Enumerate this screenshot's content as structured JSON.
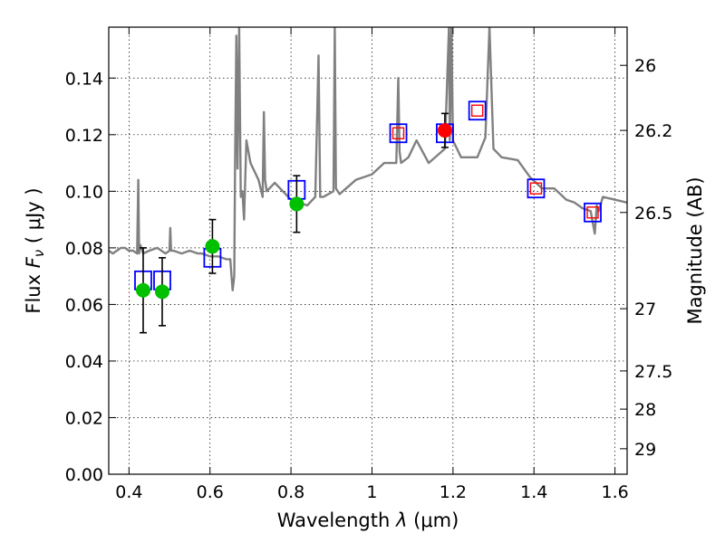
{
  "chart_data": {
    "type": "scatter",
    "title": "",
    "xlabel_prefix": "Wavelength  ",
    "xlabel_symbol": "λ",
    "xlabel_unit": " (μm)",
    "ylabel_prefix": "Flux  ",
    "ylabel_symbol": "F",
    "ylabel_symbol_sub": "ν",
    "ylabel_unit": "  ( μJy )",
    "y2label": "Magnitude (AB)",
    "xlim": [
      0.35,
      1.63
    ],
    "ylim": [
      0.0,
      0.158
    ],
    "grid": true,
    "x_ticks": [
      {
        "value": 0.4,
        "label": "0.4"
      },
      {
        "value": 0.6,
        "label": "0.6"
      },
      {
        "value": 0.8,
        "label": "0.8"
      },
      {
        "value": 1.0,
        "label": "1"
      },
      {
        "value": 1.2,
        "label": "1.2"
      },
      {
        "value": 1.4,
        "label": "1.4"
      },
      {
        "value": 1.6,
        "label": "1.6"
      }
    ],
    "y_ticks": [
      {
        "value": 0.0,
        "label": "0.00"
      },
      {
        "value": 0.02,
        "label": "0.02"
      },
      {
        "value": 0.04,
        "label": "0.04"
      },
      {
        "value": 0.06,
        "label": "0.06"
      },
      {
        "value": 0.08,
        "label": "0.08"
      },
      {
        "value": 0.1,
        "label": "0.10"
      },
      {
        "value": 0.12,
        "label": "0.12"
      },
      {
        "value": 0.14,
        "label": "0.14"
      }
    ],
    "y2_ticks": [
      {
        "flux": 0.1445,
        "label": "26"
      },
      {
        "flux": 0.1215,
        "label": "26.2"
      },
      {
        "flux": 0.0925,
        "label": "26.5"
      },
      {
        "flux": 0.0585,
        "label": "27"
      },
      {
        "flux": 0.0365,
        "label": "27.5"
      },
      {
        "flux": 0.023,
        "label": "28"
      },
      {
        "flux": 0.009,
        "label": "29"
      }
    ],
    "series": [
      {
        "name": "model SED spectrum",
        "kind": "line",
        "color": "#808080",
        "x": [
          0.35,
          0.36,
          0.37,
          0.38,
          0.39,
          0.4,
          0.41,
          0.42,
          0.423,
          0.425,
          0.428,
          0.435,
          0.45,
          0.47,
          0.49,
          0.5,
          0.502,
          0.504,
          0.51,
          0.53,
          0.55,
          0.57,
          0.58,
          0.6,
          0.62,
          0.64,
          0.65,
          0.652,
          0.656,
          0.66,
          0.662,
          0.665,
          0.668,
          0.672,
          0.676,
          0.68,
          0.684,
          0.69,
          0.7,
          0.72,
          0.73,
          0.733,
          0.736,
          0.74,
          0.76,
          0.8,
          0.84,
          0.86,
          0.868,
          0.872,
          0.88,
          0.905,
          0.908,
          0.911,
          0.92,
          0.96,
          1.0,
          1.03,
          1.06,
          1.065,
          1.068,
          1.072,
          1.09,
          1.11,
          1.14,
          1.18,
          1.19,
          1.192,
          1.196,
          1.2,
          1.22,
          1.26,
          1.28,
          1.29,
          1.3,
          1.32,
          1.36,
          1.39,
          1.42,
          1.45,
          1.48,
          1.5,
          1.52,
          1.54,
          1.55,
          1.555,
          1.56,
          1.57,
          1.6,
          1.63
        ],
        "y": [
          0.079,
          0.078,
          0.079,
          0.08,
          0.08,
          0.079,
          0.079,
          0.078,
          0.104,
          0.078,
          0.081,
          0.078,
          0.079,
          0.08,
          0.078,
          0.079,
          0.087,
          0.079,
          0.079,
          0.078,
          0.079,
          0.078,
          0.078,
          0.077,
          0.077,
          0.076,
          0.076,
          0.072,
          0.065,
          0.07,
          0.11,
          0.155,
          0.108,
          0.158,
          0.098,
          0.1,
          0.09,
          0.118,
          0.11,
          0.104,
          0.098,
          0.128,
          0.104,
          0.1,
          0.103,
          0.097,
          0.095,
          0.098,
          0.148,
          0.098,
          0.098,
          0.1,
          0.158,
          0.101,
          0.099,
          0.104,
          0.106,
          0.11,
          0.11,
          0.14,
          0.114,
          0.11,
          0.112,
          0.118,
          0.11,
          0.115,
          0.158,
          0.118,
          0.158,
          0.118,
          0.112,
          0.112,
          0.119,
          0.158,
          0.115,
          0.112,
          0.111,
          0.105,
          0.101,
          0.101,
          0.097,
          0.096,
          0.094,
          0.093,
          0.085,
          0.095,
          0.093,
          0.098,
          0.097,
          0.096
        ]
      },
      {
        "name": "model fluxes (blue squares)",
        "kind": "open-square",
        "color": "#0000ff",
        "x": [
          0.435,
          0.482,
          0.606,
          0.814,
          1.065,
          1.18,
          1.26,
          1.405,
          1.545
        ],
        "y": [
          0.0685,
          0.0685,
          0.0765,
          0.1005,
          0.1205,
          0.1205,
          0.1285,
          0.101,
          0.0925
        ]
      },
      {
        "name": "observed fluxes (green)",
        "kind": "filled-circle",
        "color": "#00c000",
        "x": [
          0.435,
          0.482,
          0.606,
          0.814
        ],
        "y": [
          0.065,
          0.0645,
          0.0805,
          0.0955
        ],
        "yerr_low": [
          0.015,
          0.012,
          0.0095,
          0.01
        ],
        "yerr_high": [
          0.015,
          0.012,
          0.0095,
          0.01
        ]
      },
      {
        "name": "observed flux (red)",
        "kind": "filled-circle",
        "color": "#ff0000",
        "x": [
          1.18
        ],
        "y": [
          0.1215
        ],
        "yerr_low": [
          0.006
        ],
        "yerr_high": [
          0.006
        ]
      },
      {
        "name": "upper-limit bands (red squares)",
        "kind": "small-open-square",
        "color": "#ff0000",
        "x": [
          1.065,
          1.26,
          1.405,
          1.545
        ],
        "y": [
          0.1205,
          0.1285,
          0.101,
          0.0925
        ]
      }
    ]
  }
}
